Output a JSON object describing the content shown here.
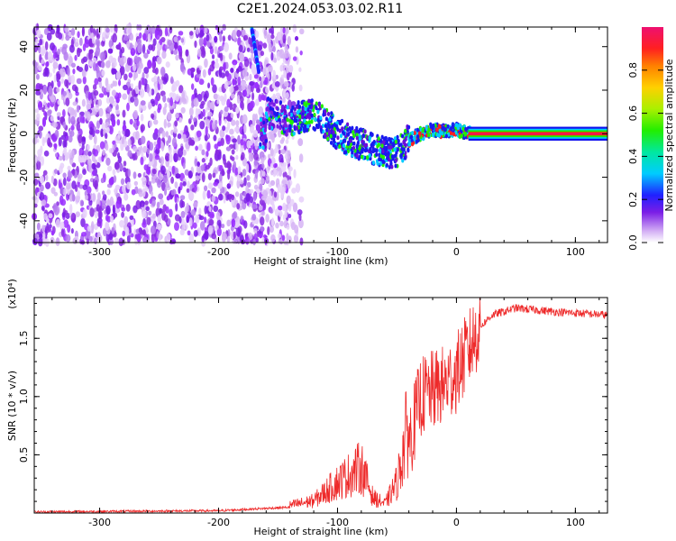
{
  "title": "C2E1.2024.053.03.02.R11",
  "colors": {
    "snr_line": "#ee2a2a",
    "spectrogram_scatter": "#8a2be2",
    "axis": "#000000"
  },
  "chart_data": [
    {
      "type": "heatmap",
      "name": "spectrogram",
      "xlabel": "Height of straight line (km)",
      "ylabel": "Frequency (Hz)",
      "xlim": [
        -355,
        127
      ],
      "ylim": [
        -50,
        49
      ],
      "xticks": [
        -300,
        -200,
        -100,
        0,
        100
      ],
      "xtick_labels": [
        "-300",
        "-200",
        "-100",
        "0",
        "100"
      ],
      "yticks": [
        -40,
        -20,
        0,
        20,
        40
      ],
      "ytick_labels": [
        "-40",
        "-20",
        "0",
        "20",
        "40"
      ],
      "carrier_trace": [
        {
          "x": -160,
          "y": 10
        },
        {
          "x": -150,
          "y": 8
        },
        {
          "x": -140,
          "y": 6
        },
        {
          "x": -130,
          "y": 8
        },
        {
          "x": -120,
          "y": 9
        },
        {
          "x": -110,
          "y": 5
        },
        {
          "x": -100,
          "y": 0
        },
        {
          "x": -90,
          "y": -3
        },
        {
          "x": -80,
          "y": -5
        },
        {
          "x": -70,
          "y": -7
        },
        {
          "x": -60,
          "y": -9
        },
        {
          "x": -50,
          "y": -8
        },
        {
          "x": -40,
          "y": -3
        },
        {
          "x": -30,
          "y": 0
        },
        {
          "x": -20,
          "y": 2
        },
        {
          "x": -10,
          "y": 1
        },
        {
          "x": 0,
          "y": 2
        },
        {
          "x": 10,
          "y": 0
        },
        {
          "x": 127,
          "y": 0
        }
      ],
      "colorbar": {
        "label": "Normalized spectral amplitude",
        "range": [
          0,
          1
        ],
        "ticks": [
          0.0,
          0.2,
          0.4,
          0.6,
          0.8
        ],
        "tick_labels": [
          "0.0",
          "0.2",
          "0.4",
          "0.6",
          "0.8"
        ]
      }
    },
    {
      "type": "line",
      "name": "snr",
      "xlabel": "Height of straight line (km)",
      "ylabel": "SNR (10 * v/v)",
      "yscale_note": "(x10⁴)",
      "xlim": [
        -355,
        127
      ],
      "ylim": [
        0,
        1.85
      ],
      "xticks": [
        -300,
        -200,
        -100,
        0,
        100
      ],
      "xtick_labels": [
        "-300",
        "-200",
        "-100",
        "0",
        "100"
      ],
      "yticks": [
        0.5,
        1.0,
        1.5
      ],
      "ytick_labels": [
        "0.5",
        "1.0",
        "1.5"
      ],
      "envelope": [
        {
          "x": -355,
          "y": 0.01
        },
        {
          "x": -200,
          "y": 0.02
        },
        {
          "x": -140,
          "y": 0.05
        },
        {
          "x": -120,
          "y": 0.08
        },
        {
          "x": -100,
          "y": 0.2
        },
        {
          "x": -80,
          "y": 0.3
        },
        {
          "x": -70,
          "y": 0.1
        },
        {
          "x": -60,
          "y": 0.06
        },
        {
          "x": -50,
          "y": 0.2
        },
        {
          "x": -40,
          "y": 0.6
        },
        {
          "x": -30,
          "y": 1.0
        },
        {
          "x": -20,
          "y": 1.05
        },
        {
          "x": -10,
          "y": 1.1
        },
        {
          "x": 0,
          "y": 1.2
        },
        {
          "x": 10,
          "y": 1.4
        },
        {
          "x": 20,
          "y": 1.6
        },
        {
          "x": 30,
          "y": 1.7
        },
        {
          "x": 50,
          "y": 1.76
        },
        {
          "x": 80,
          "y": 1.73
        },
        {
          "x": 127,
          "y": 1.7
        }
      ]
    }
  ]
}
